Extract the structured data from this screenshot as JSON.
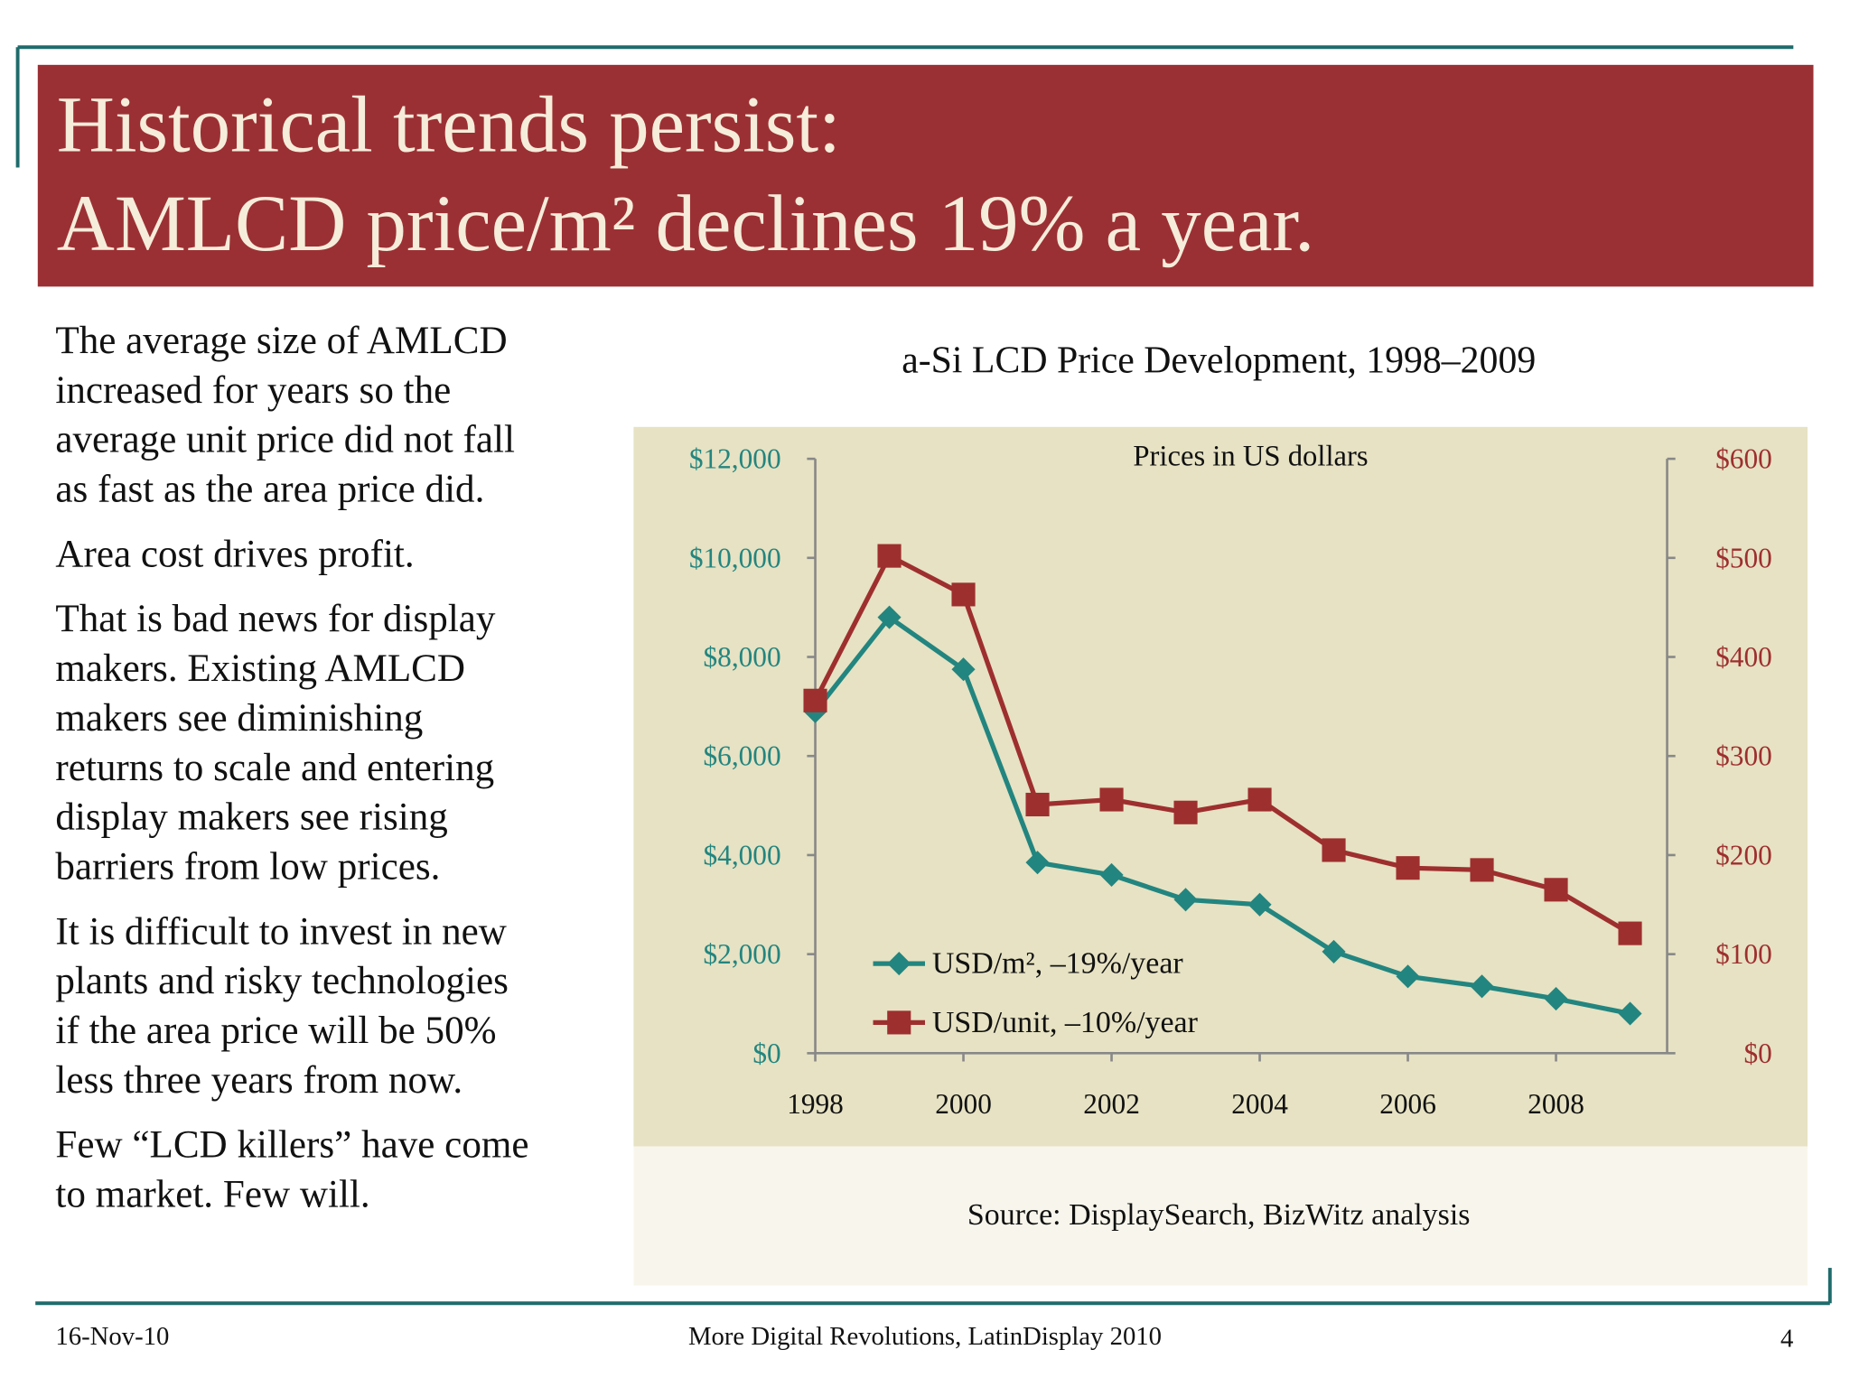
{
  "slide": {
    "title": [
      "Historical trends persist:",
      "AMLCD price/m² declines 19% a year."
    ],
    "body": [
      [
        "The average size of AMLCD",
        "increased for years so the",
        "average unit price did not fall",
        "as fast as the area price did."
      ],
      [
        "Area cost drives profit."
      ],
      [
        "That is bad news for display",
        "makers. Existing AMLCD",
        "makers see diminishing",
        "returns to scale and entering",
        "display makers see rising",
        "barriers from low prices."
      ],
      [
        "It is difficult to invest in new",
        "plants and risky technologies",
        "if the area price will be 50%",
        "less three years from now."
      ],
      [
        "Few “LCD killers” have come",
        "to market. Few will."
      ]
    ],
    "footer": {
      "date": "16-Nov-10",
      "center": "More Digital Revolutions, LatinDisplay 2010",
      "page": "4"
    }
  },
  "chart_data": {
    "type": "line",
    "title": "a-Si LCD Price Development, 1998–2009",
    "subtitle": "Prices in US dollars",
    "source": "Source: DisplaySearch, BizWitz analysis",
    "x": [
      1998,
      1999,
      2000,
      2001,
      2002,
      2003,
      2004,
      2005,
      2006,
      2007,
      2008,
      2009
    ],
    "xlim": [
      1998,
      2009.5
    ],
    "xticks": [
      1998,
      2000,
      2002,
      2004,
      2006,
      2008
    ],
    "ylim": [
      0,
      12000
    ],
    "yticks": [
      {
        "value": 0,
        "label": "$0"
      },
      {
        "value": 2000,
        "label": "$2,000"
      },
      {
        "value": 4000,
        "label": "$4,000"
      },
      {
        "value": 6000,
        "label": "$6,000"
      },
      {
        "value": 8000,
        "label": "$8,000"
      },
      {
        "value": 10000,
        "label": "$10,000"
      },
      {
        "value": 12000,
        "label": "$12,000"
      }
    ],
    "y2lim": [
      0,
      600
    ],
    "y2ticks": [
      {
        "value": 0,
        "label": "$0"
      },
      {
        "value": 100,
        "label": "$100"
      },
      {
        "value": 200,
        "label": "$200"
      },
      {
        "value": 300,
        "label": "$300"
      },
      {
        "value": 400,
        "label": "$400"
      },
      {
        "value": 500,
        "label": "$500"
      },
      {
        "value": 600,
        "label": "$600"
      }
    ],
    "grid": false,
    "legend": "lower left",
    "series": [
      {
        "name": "USD/m², –19%/year",
        "color": "#23857f",
        "marker": "diamond",
        "values": [
          6900,
          8800,
          7750,
          3850,
          3600,
          3100,
          3000,
          2050,
          1550,
          1350,
          1100,
          800
        ]
      },
      {
        "name": "USD/unit, –10%/year",
        "color": "#9e2f2f",
        "marker": "square",
        "axis": "y2",
        "values": [
          356,
          502,
          463,
          251,
          256,
          243,
          256,
          205,
          187,
          185,
          165,
          121
        ]
      }
    ]
  }
}
